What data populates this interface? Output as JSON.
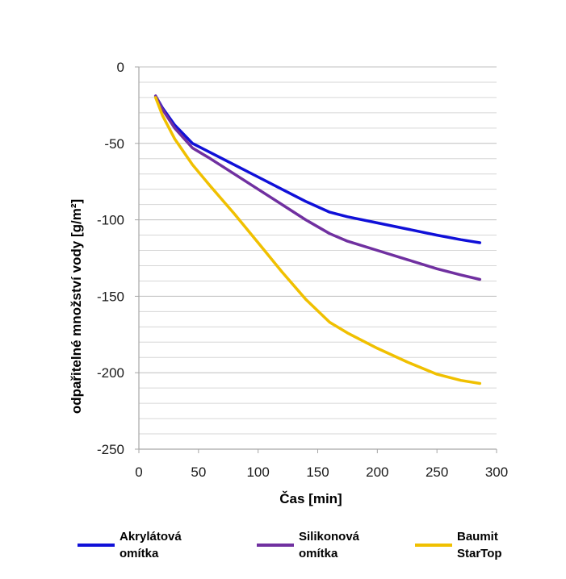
{
  "chart_data": {
    "type": "line",
    "xlabel": "Čas  [min]",
    "ylabel": "odpařitelné  množství vody  [g/m²]",
    "xlim": [
      0,
      300
    ],
    "ylim": [
      -250,
      0
    ],
    "xticks": [
      "0",
      "50",
      "100",
      "150",
      "200",
      "250",
      "300"
    ],
    "yticks": [
      "0",
      "-50",
      "-100",
      "-150",
      "-200",
      "-250"
    ],
    "grid": "horizontal",
    "legend_position": "bottom",
    "series": [
      {
        "name": "Akrylátová\nomítka",
        "color": "#1010d8",
        "x": [
          14,
          20,
          30,
          45,
          60,
          80,
          100,
          120,
          140,
          160,
          175,
          200,
          225,
          250,
          270,
          286
        ],
        "y": [
          -19,
          -27,
          -38,
          -50,
          -56,
          -64,
          -72,
          -80,
          -88,
          -95,
          -98,
          -102,
          -106,
          -110,
          -113,
          -115
        ]
      },
      {
        "name": "Silikonová\nomítka",
        "color": "#7030a0",
        "x": [
          14,
          20,
          30,
          45,
          60,
          80,
          100,
          120,
          140,
          160,
          175,
          200,
          225,
          250,
          270,
          286
        ],
        "y": [
          -19,
          -28,
          -40,
          -53,
          -60,
          -70,
          -80,
          -90,
          -100,
          -109,
          -114,
          -120,
          -126,
          -132,
          -136,
          -139
        ]
      },
      {
        "name": "Baumit\nStarTop",
        "color": "#f0c000",
        "x": [
          14,
          20,
          30,
          45,
          60,
          80,
          100,
          120,
          140,
          160,
          175,
          200,
          225,
          250,
          270,
          286
        ],
        "y": [
          -20,
          -32,
          -47,
          -64,
          -78,
          -96,
          -115,
          -134,
          -152,
          -167,
          -174,
          -184,
          -193,
          -201,
          -205,
          -207
        ]
      }
    ]
  }
}
